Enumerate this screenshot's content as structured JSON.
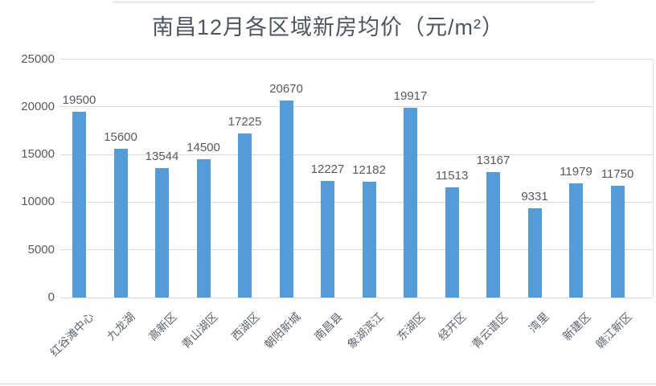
{
  "title": "南昌12月各区域新房均价（元/m²）",
  "chart_data": {
    "type": "bar",
    "title": "南昌12月各区域新房均价（元/m²）",
    "categories": [
      "红谷滩中心",
      "九龙湖",
      "高新区",
      "青山湖区",
      "西湖区",
      "朝阳新城",
      "南昌县",
      "象湖滨江",
      "东湖区",
      "经开区",
      "青云谱区",
      "湾里",
      "新建区",
      "赣江新区"
    ],
    "values": [
      19500,
      15600,
      13544,
      14500,
      17225,
      20670,
      12227,
      12182,
      19917,
      11513,
      13167,
      9331,
      11979,
      11750
    ],
    "xlabel": "",
    "ylabel": "",
    "ylim": [
      0,
      25000
    ],
    "yticks": [
      0,
      5000,
      10000,
      15000,
      20000,
      25000
    ],
    "grid": true,
    "data_labels": true,
    "legend": "none",
    "bar_color": "#549cd8",
    "grid_color": "#ded8d8",
    "title_color": "#4d5560",
    "label_color": "#595959"
  }
}
